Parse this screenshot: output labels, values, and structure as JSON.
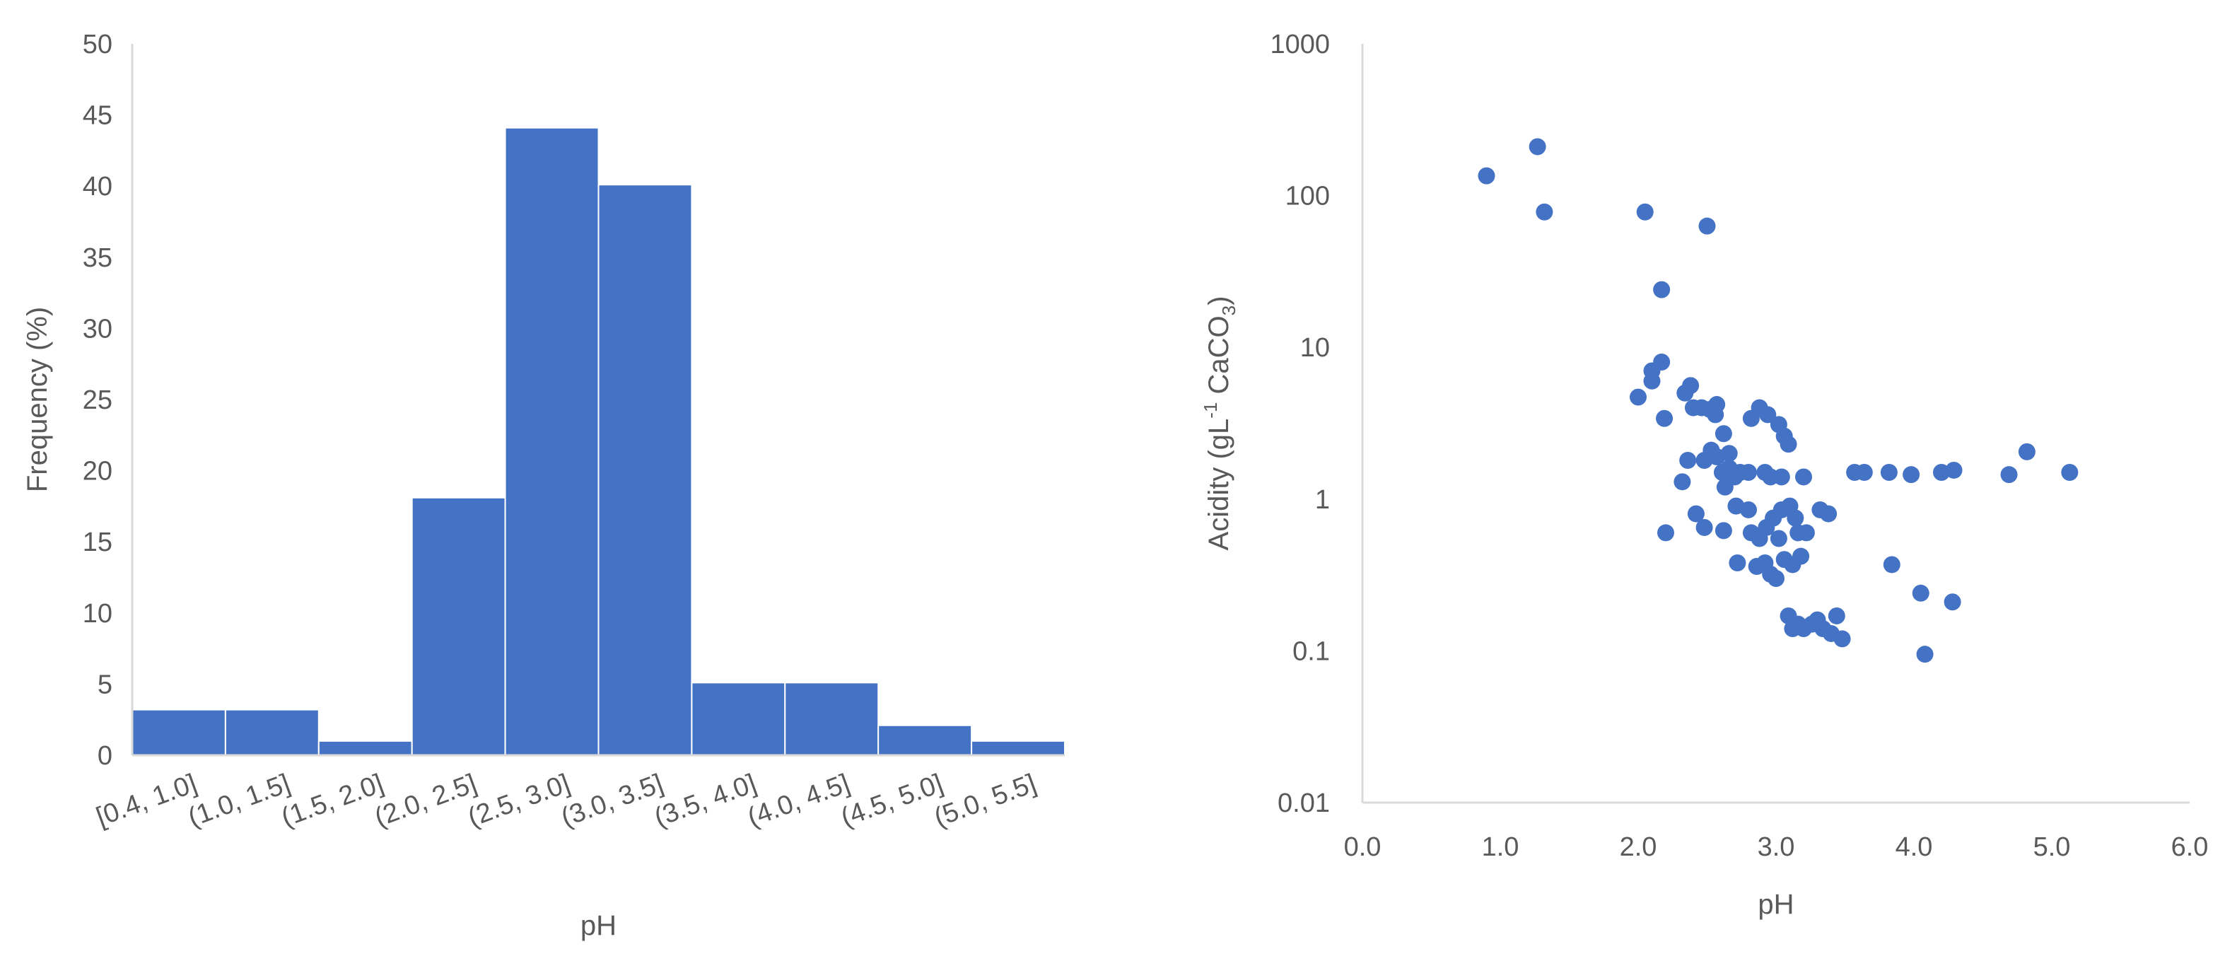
{
  "colors": {
    "bar": "#4472c4",
    "point": "#4472c4",
    "text": "#595959",
    "axis": "#d9d9d9"
  },
  "chart_data": [
    {
      "type": "bar",
      "categories": [
        "[0.4, 1.0]",
        "(1.0, 1.5]",
        "(1.5, 2.0]",
        "(2.0, 2.5]",
        "(2.5, 3.0]",
        "(3.0, 3.5]",
        "(3.5, 4.0]",
        "(4.0, 4.5]",
        "(4.5, 5.0]",
        "(5.0, 5.5]"
      ],
      "values": [
        3.2,
        3.2,
        1.0,
        18.1,
        44.1,
        40.1,
        5.1,
        5.1,
        2.1,
        1.0
      ],
      "xlabel": "pH",
      "ylabel": "Frequency (%)",
      "ylim": [
        0,
        50
      ],
      "yticks": [
        "0",
        "5",
        "10",
        "15",
        "20",
        "25",
        "30",
        "35",
        "40",
        "45",
        "50"
      ],
      "grid": false,
      "legend": "none"
    },
    {
      "type": "scatter",
      "xlabel": "pH",
      "ylabel_parts": [
        "Acidity (gL",
        "-1",
        " CaCO",
        "3",
        ")"
      ],
      "xlim": [
        0,
        6
      ],
      "ylim": [
        0.01,
        1000
      ],
      "yscale": "log",
      "xticks": [
        "0.0",
        "1.0",
        "2.0",
        "3.0",
        "4.0",
        "5.0",
        "6.0"
      ],
      "yticks": [
        "0.01",
        "0.1",
        "1",
        "10",
        "100",
        "1000"
      ],
      "grid": false,
      "legend": "none",
      "points": [
        [
          0.9,
          135
        ],
        [
          1.27,
          210
        ],
        [
          1.32,
          78
        ],
        [
          2.05,
          78
        ],
        [
          2.5,
          63
        ],
        [
          2.17,
          24
        ],
        [
          2.0,
          4.7
        ],
        [
          2.1,
          6.0
        ],
        [
          2.1,
          7.0
        ],
        [
          2.17,
          8.0
        ],
        [
          2.19,
          3.4
        ],
        [
          2.34,
          5.0
        ],
        [
          2.38,
          5.6
        ],
        [
          2.4,
          4.0
        ],
        [
          2.46,
          4.0
        ],
        [
          2.52,
          3.9
        ],
        [
          2.57,
          4.2
        ],
        [
          2.56,
          3.6
        ],
        [
          2.62,
          2.7
        ],
        [
          2.66,
          2.0
        ],
        [
          2.53,
          2.1
        ],
        [
          2.48,
          1.8
        ],
        [
          2.57,
          1.9
        ],
        [
          2.61,
          1.5
        ],
        [
          2.63,
          1.2
        ],
        [
          2.66,
          1.6
        ],
        [
          2.7,
          1.4
        ],
        [
          2.74,
          1.5
        ],
        [
          2.8,
          1.5
        ],
        [
          2.36,
          1.8
        ],
        [
          2.32,
          1.3
        ],
        [
          2.82,
          3.4
        ],
        [
          2.88,
          4.0
        ],
        [
          2.94,
          3.6
        ],
        [
          3.02,
          3.1
        ],
        [
          3.06,
          2.6
        ],
        [
          3.09,
          2.3
        ],
        [
          2.92,
          1.5
        ],
        [
          2.96,
          1.4
        ],
        [
          3.04,
          1.4
        ],
        [
          3.2,
          1.4
        ],
        [
          2.42,
          0.8
        ],
        [
          2.71,
          0.9
        ],
        [
          2.8,
          0.85
        ],
        [
          2.2,
          0.6
        ],
        [
          2.48,
          0.65
        ],
        [
          2.62,
          0.62
        ],
        [
          2.82,
          0.6
        ],
        [
          2.88,
          0.55
        ],
        [
          2.93,
          0.65
        ],
        [
          2.98,
          0.75
        ],
        [
          3.04,
          0.85
        ],
        [
          3.1,
          0.9
        ],
        [
          3.16,
          0.6
        ],
        [
          3.22,
          0.6
        ],
        [
          3.32,
          0.85
        ],
        [
          3.38,
          0.8
        ],
        [
          3.14,
          0.75
        ],
        [
          3.02,
          0.55
        ],
        [
          2.72,
          0.38
        ],
        [
          2.86,
          0.36
        ],
        [
          2.92,
          0.38
        ],
        [
          2.96,
          0.32
        ],
        [
          3.0,
          0.3
        ],
        [
          3.06,
          0.4
        ],
        [
          3.12,
          0.37
        ],
        [
          3.18,
          0.42
        ],
        [
          3.09,
          0.17
        ],
        [
          3.12,
          0.14
        ],
        [
          3.16,
          0.15
        ],
        [
          3.2,
          0.14
        ],
        [
          3.26,
          0.15
        ],
        [
          3.3,
          0.16
        ],
        [
          3.34,
          0.14
        ],
        [
          3.4,
          0.13
        ],
        [
          3.44,
          0.17
        ],
        [
          3.48,
          0.12
        ],
        [
          3.57,
          1.5
        ],
        [
          3.64,
          1.5
        ],
        [
          3.82,
          1.5
        ],
        [
          3.98,
          1.45
        ],
        [
          4.2,
          1.5
        ],
        [
          4.29,
          1.55
        ],
        [
          4.69,
          1.45
        ],
        [
          4.82,
          2.05
        ],
        [
          5.13,
          1.5
        ],
        [
          3.84,
          0.37
        ],
        [
          4.05,
          0.24
        ],
        [
          4.08,
          0.095
        ],
        [
          4.28,
          0.21
        ]
      ]
    }
  ]
}
